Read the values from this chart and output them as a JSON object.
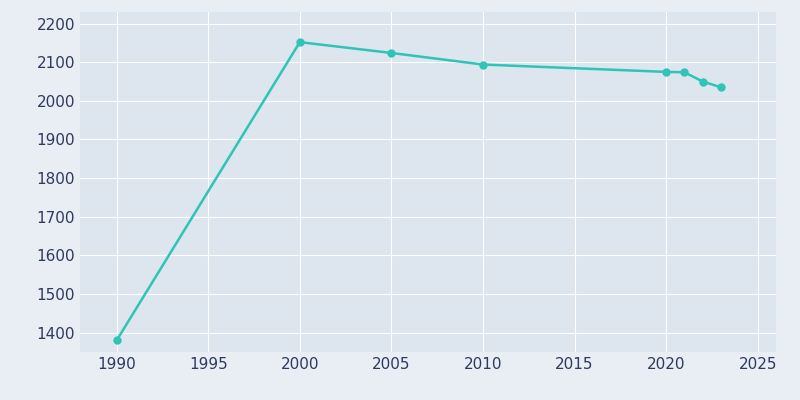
{
  "years": [
    1990,
    2000,
    2005,
    2010,
    2020,
    2021,
    2022,
    2023
  ],
  "population": [
    1380,
    2152,
    2124,
    2094,
    2075,
    2074,
    2050,
    2035
  ],
  "line_color": "#2ec4b6",
  "marker_color": "#2ec4b6",
  "background_color": "#e8eef4",
  "axes_bg_color": "#dde5ef",
  "grid_color": "#ffffff",
  "tick_label_color": "#2d3a5e",
  "xlim": [
    1988,
    2026
  ],
  "ylim": [
    1350,
    2230
  ],
  "xticks": [
    1990,
    1995,
    2000,
    2005,
    2010,
    2015,
    2020,
    2025
  ],
  "yticks": [
    1400,
    1500,
    1600,
    1700,
    1800,
    1900,
    2000,
    2100,
    2200
  ],
  "line_width": 1.8,
  "marker_size": 5,
  "marker_style": "o",
  "figsize": [
    8.0,
    4.0
  ],
  "dpi": 100
}
